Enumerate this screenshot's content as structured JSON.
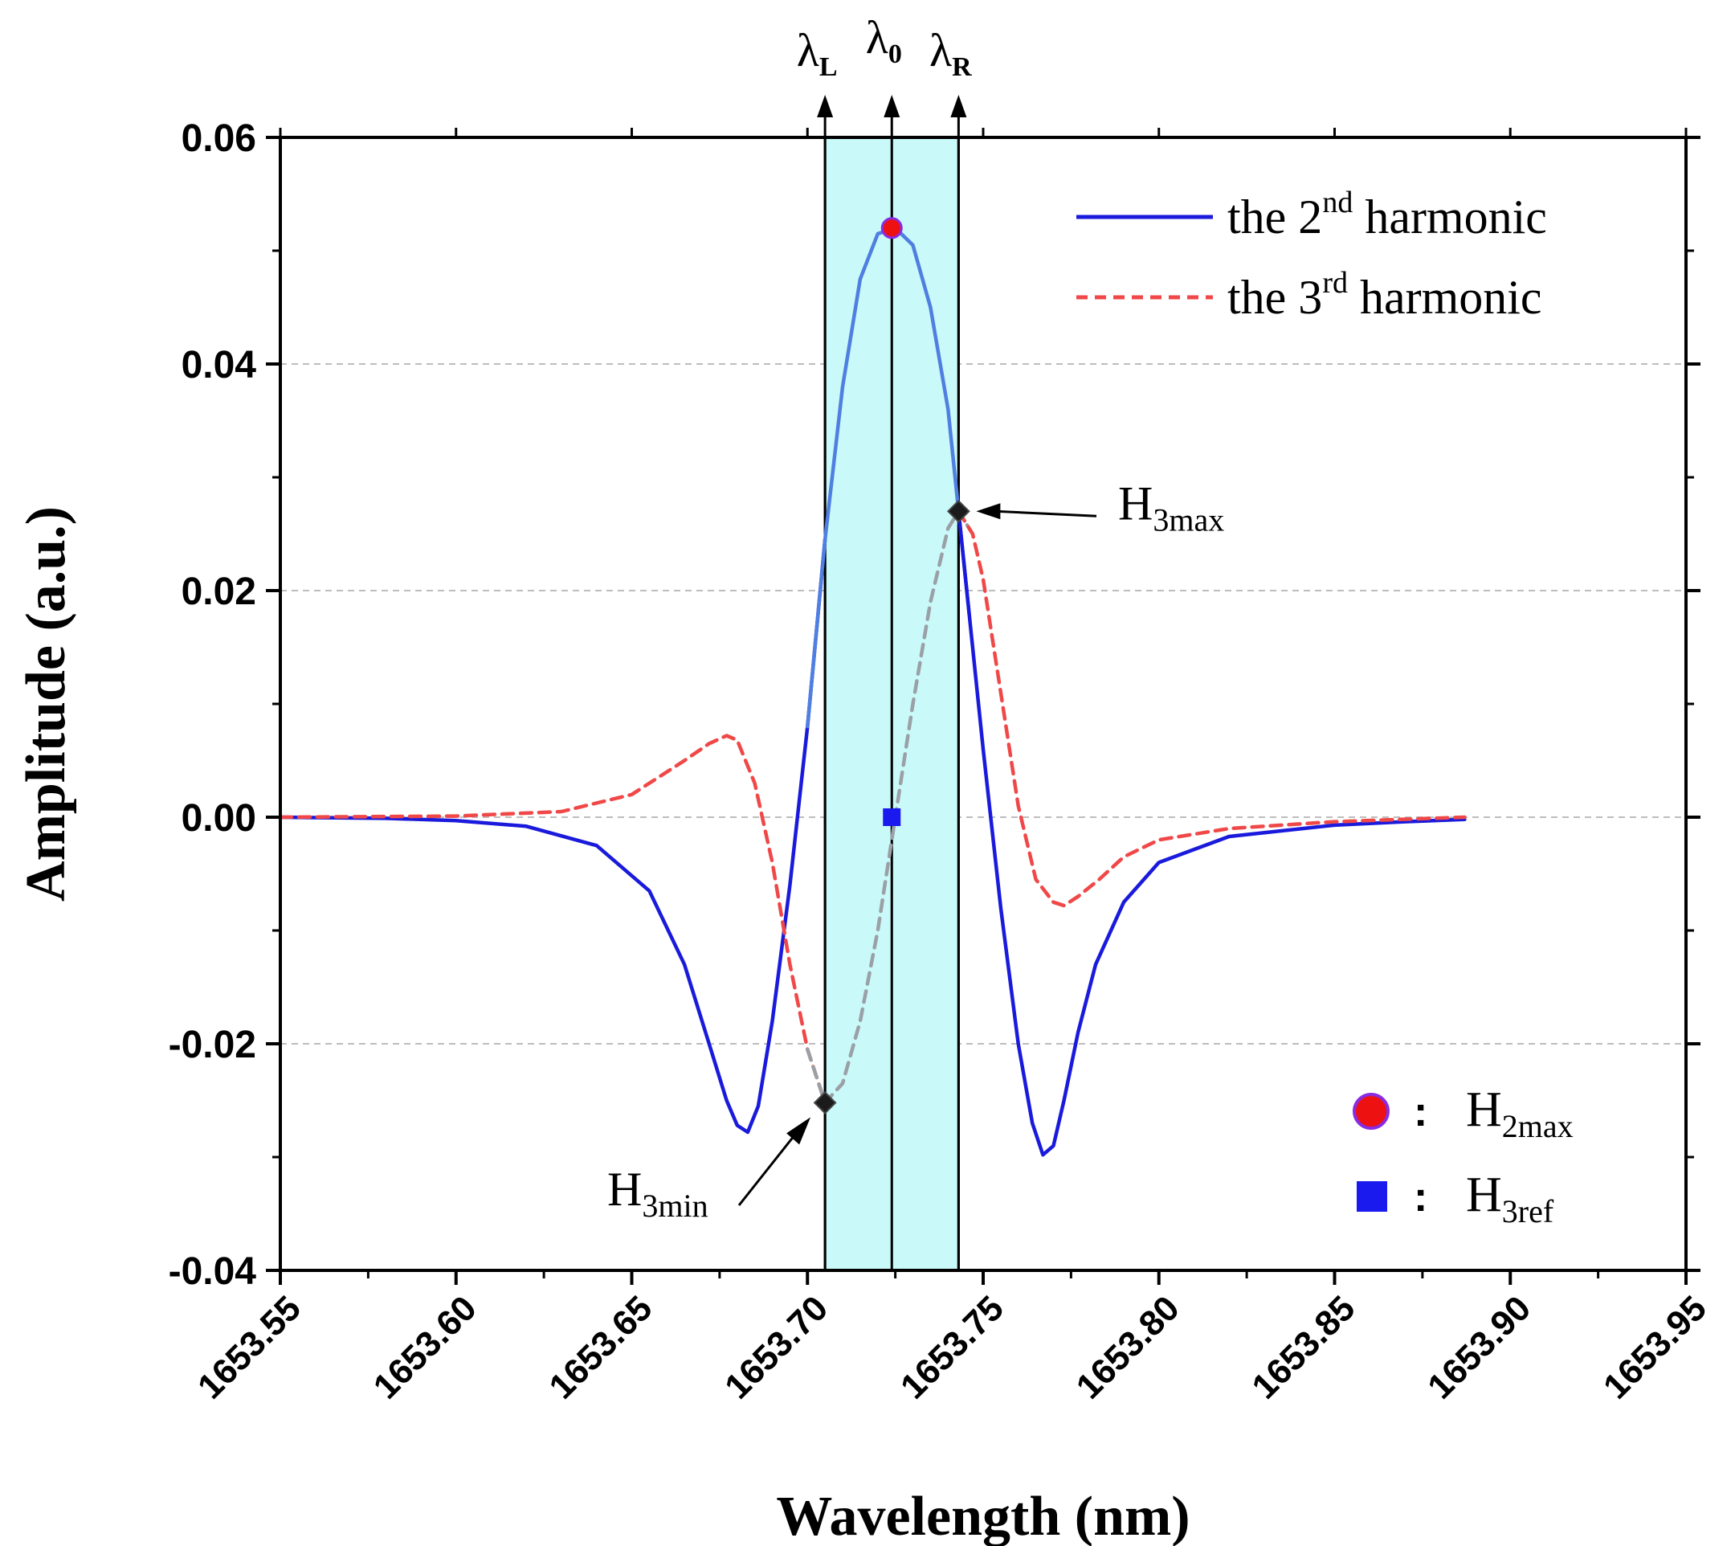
{
  "chart_data": {
    "type": "line",
    "title": "",
    "xlabel": "Wavelength (nm)",
    "ylabel": "Amplitude (a.u.)",
    "xlim": [
      1653.55,
      1653.95
    ],
    "ylim": [
      -0.04,
      0.06
    ],
    "x_ticks": [
      "1653.55",
      "1653.60",
      "1653.65",
      "1653.70",
      "1653.75",
      "1653.80",
      "1653.85",
      "1653.90",
      "1653.95"
    ],
    "x_tick_values": [
      1653.55,
      1653.6,
      1653.65,
      1653.7,
      1653.75,
      1653.8,
      1653.85,
      1653.9,
      1653.95
    ],
    "y_ticks": [
      "0.06",
      "0.04",
      "0.02",
      "0.00",
      "-0.02",
      "-0.04"
    ],
    "y_tick_values": [
      0.06,
      0.04,
      0.02,
      0.0,
      -0.02,
      -0.04
    ],
    "gridlines_y": [
      0.04,
      0.02,
      0.0,
      -0.02
    ],
    "colors": {
      "second": "#1a1adc",
      "second_highlight": "#4f7fe0",
      "third": "#f04848",
      "third_highlight": "#9aa0a6",
      "band": "#c9f9f9",
      "grid": "#bdbdbd",
      "h2max": "#ee1111",
      "h2max_edge": "#8a2be2",
      "h3ref": "#1a1aee"
    },
    "series": [
      {
        "name": "the 2nd harmonic",
        "style": "solid",
        "x": [
          1653.55,
          1653.58,
          1653.6,
          1653.62,
          1653.64,
          1653.655,
          1653.665,
          1653.672,
          1653.677,
          1653.68,
          1653.683,
          1653.686,
          1653.69,
          1653.695,
          1653.7,
          1653.705,
          1653.71,
          1653.715,
          1653.72,
          1653.725,
          1653.73,
          1653.735,
          1653.74,
          1653.743,
          1653.746,
          1653.75,
          1653.755,
          1653.76,
          1653.764,
          1653.767,
          1653.77,
          1653.773,
          1653.777,
          1653.782,
          1653.79,
          1653.8,
          1653.82,
          1653.85,
          1653.87,
          1653.887
        ],
        "y": [
          0.0,
          -0.0001,
          -0.0003,
          -0.0008,
          -0.0025,
          -0.0065,
          -0.013,
          -0.02,
          -0.025,
          -0.0272,
          -0.0278,
          -0.0255,
          -0.018,
          -0.006,
          0.008,
          0.0245,
          0.038,
          0.0475,
          0.0515,
          0.052,
          0.0505,
          0.045,
          0.036,
          0.027,
          0.018,
          0.006,
          -0.008,
          -0.02,
          -0.027,
          -0.0298,
          -0.029,
          -0.025,
          -0.019,
          -0.013,
          -0.0075,
          -0.004,
          -0.0017,
          -0.0007,
          -0.0004,
          -0.0002
        ]
      },
      {
        "name": "the 3rd harmonic",
        "style": "dashed",
        "x": [
          1653.55,
          1653.6,
          1653.63,
          1653.65,
          1653.665,
          1653.672,
          1653.677,
          1653.68,
          1653.685,
          1653.69,
          1653.695,
          1653.7,
          1653.705,
          1653.71,
          1653.715,
          1653.72,
          1653.725,
          1653.73,
          1653.735,
          1653.74,
          1653.743,
          1653.747,
          1653.75,
          1653.755,
          1653.76,
          1653.765,
          1653.77,
          1653.773,
          1653.777,
          1653.783,
          1653.79,
          1653.8,
          1653.82,
          1653.85,
          1653.887
        ],
        "y": [
          0.0,
          0.0001,
          0.0005,
          0.002,
          0.005,
          0.0065,
          0.0072,
          0.0068,
          0.003,
          -0.004,
          -0.013,
          -0.0205,
          -0.0252,
          -0.0235,
          -0.018,
          -0.01,
          0.0,
          0.01,
          0.019,
          0.0255,
          0.027,
          0.025,
          0.021,
          0.011,
          0.001,
          -0.0055,
          -0.0075,
          -0.0078,
          -0.007,
          -0.0055,
          -0.0035,
          -0.002,
          -0.001,
          -0.0004,
          0.0
        ]
      }
    ],
    "highlight_range": [
      1653.705,
      1653.743
    ],
    "vertical_markers": [
      {
        "label": "λ",
        "sub": "L",
        "x": 1653.705
      },
      {
        "label": "λ",
        "sub": "0",
        "x": 1653.724
      },
      {
        "label": "λ",
        "sub": "R",
        "x": 1653.743
      }
    ],
    "points": {
      "h2max": {
        "x": 1653.724,
        "y": 0.052
      },
      "h3ref": {
        "x": 1653.724,
        "y": 0.0
      },
      "h3min": {
        "x": 1653.705,
        "y": -0.0252
      },
      "h3max": {
        "x": 1653.743,
        "y": 0.027
      }
    },
    "annotations": [
      {
        "id": "h3max",
        "base": "H",
        "sub": "3max"
      },
      {
        "id": "h3min",
        "base": "H",
        "sub": "3min"
      }
    ],
    "legend": {
      "position": "top-right",
      "entries": [
        {
          "base": "the 2",
          "sup": "nd",
          "rest": " harmonic"
        },
        {
          "base": "the 3",
          "sup": "rd",
          "rest": " harmonic"
        }
      ]
    },
    "marker_legend": {
      "position": "bottom-right",
      "separator": ":",
      "entries": [
        {
          "shape": "circle",
          "base": "H",
          "sub": "2max"
        },
        {
          "shape": "square",
          "base": "H",
          "sub": "3ref"
        }
      ]
    }
  }
}
